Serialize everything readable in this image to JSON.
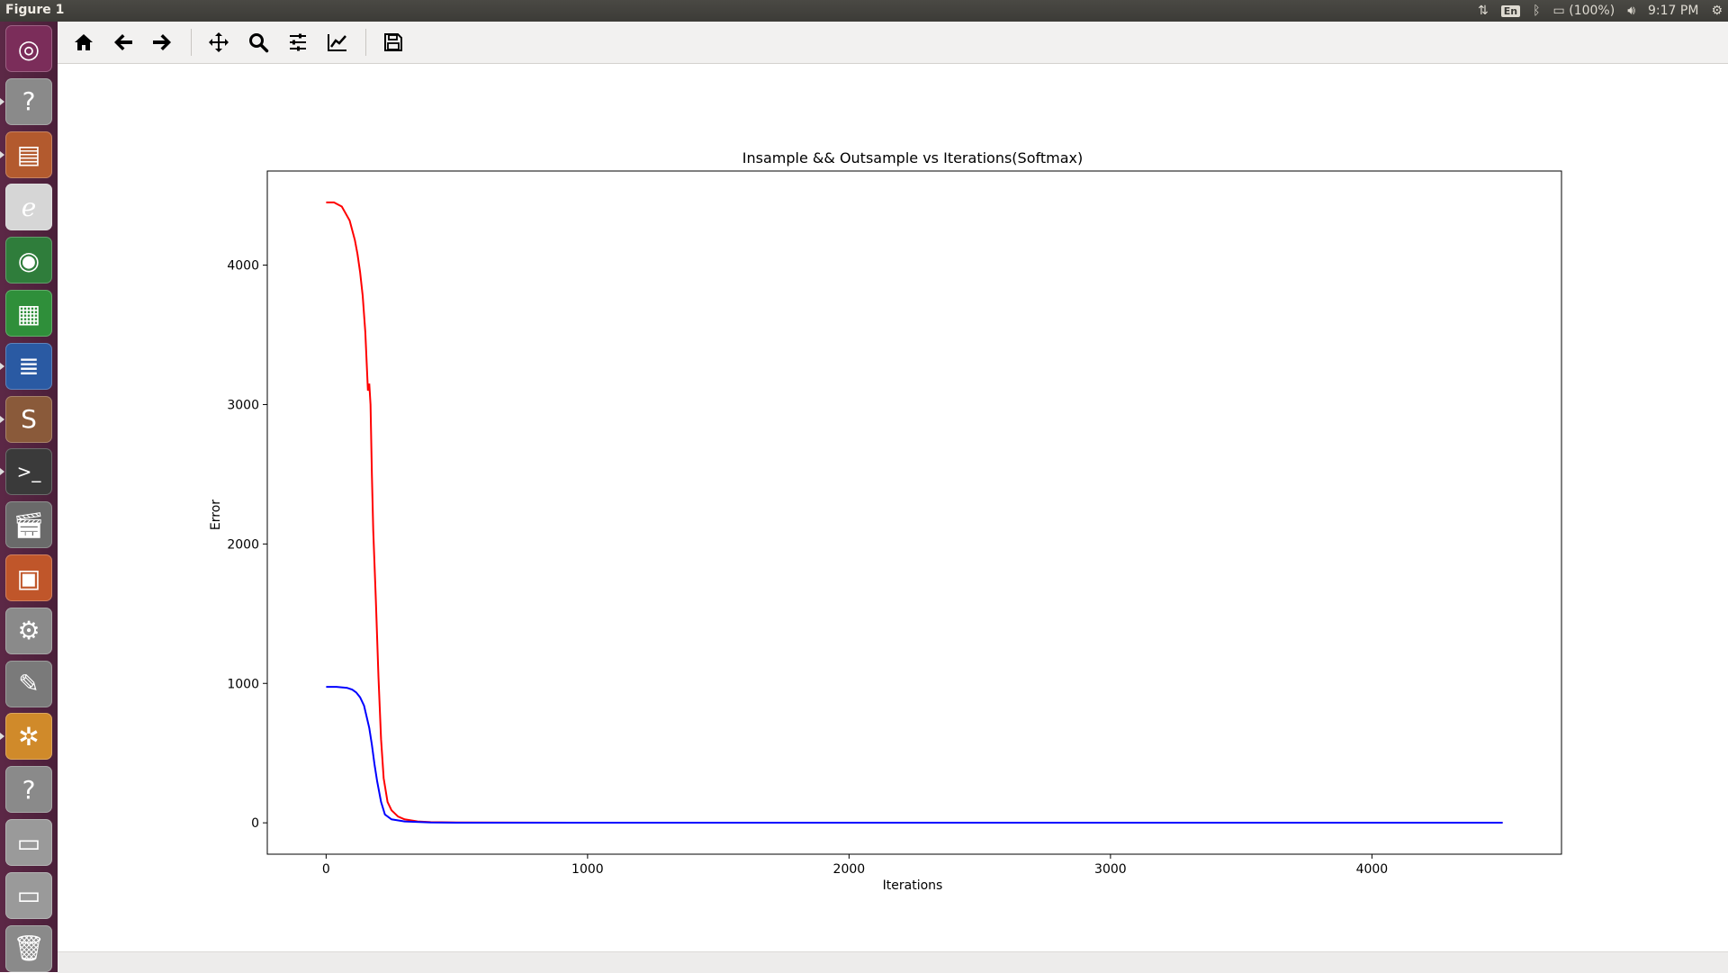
{
  "window": {
    "title": "Figure 1"
  },
  "tray": {
    "keyboard": "En",
    "battery": "(100%)",
    "clock": "9:17 PM"
  },
  "launcher": {
    "items": [
      {
        "name": "dash-home",
        "icon": "ubuntu-logo-icon",
        "color": "#7b2d5a"
      },
      {
        "name": "unknown-app-1",
        "icon": "question-icon",
        "color": "#8a8a8a"
      },
      {
        "name": "files",
        "icon": "file-cabinet-icon",
        "color": "#b35a2e"
      },
      {
        "name": "document-viewer",
        "icon": "pdf-icon",
        "color": "#d6d6d6"
      },
      {
        "name": "chrome",
        "icon": "chrome-icon",
        "color": "#2f7d3b"
      },
      {
        "name": "calc",
        "icon": "spreadsheet-icon",
        "color": "#2f8f3a"
      },
      {
        "name": "writer",
        "icon": "writer-icon",
        "color": "#2a5aa3"
      },
      {
        "name": "sublime-text",
        "icon": "sublime-icon",
        "color": "#8a5a3a"
      },
      {
        "name": "terminal",
        "icon": "terminal-icon",
        "color": "#3a3a3a"
      },
      {
        "name": "video-editor",
        "icon": "clapper-icon",
        "color": "#6a6a6a"
      },
      {
        "name": "impress",
        "icon": "presentation-icon",
        "color": "#c0562a"
      },
      {
        "name": "system-settings",
        "icon": "gear-wrench-icon",
        "color": "#8a8a8a"
      },
      {
        "name": "text-editor",
        "icon": "text-editor-icon",
        "color": "#7a7a7a"
      },
      {
        "name": "pinwheel-app",
        "icon": "pinwheel-icon",
        "color": "#d08a2a"
      },
      {
        "name": "unknown-app-2",
        "icon": "question-icon",
        "color": "#8a8a8a"
      },
      {
        "name": "drive-1",
        "icon": "hard-drive-icon",
        "color": "#9a9a9a"
      },
      {
        "name": "drive-2",
        "icon": "hard-drive-icon",
        "color": "#9a9a9a"
      },
      {
        "name": "trash",
        "icon": "trash-icon",
        "color": "#8a8a8a"
      }
    ]
  },
  "toolbar": {
    "buttons": [
      {
        "name": "home-button",
        "icon": "home-icon"
      },
      {
        "name": "back-button",
        "icon": "arrow-left-icon"
      },
      {
        "name": "forward-button",
        "icon": "arrow-right-icon"
      },
      {
        "name": "pan-button",
        "icon": "move-icon"
      },
      {
        "name": "zoom-button",
        "icon": "zoom-icon"
      },
      {
        "name": "configure-subplots-button",
        "icon": "sliders-icon"
      },
      {
        "name": "edit-axis-button",
        "icon": "line-chart-icon"
      },
      {
        "name": "save-button",
        "icon": "floppy-icon"
      }
    ]
  },
  "chart_data": {
    "type": "line",
    "title": "Insample && Outsample vs Iterations(Softmax)",
    "xlabel": "Iterations",
    "ylabel": "Error",
    "xlim": [
      -225,
      4725
    ],
    "ylim": [
      -225,
      4675
    ],
    "xticks": [
      0,
      1000,
      2000,
      3000,
      4000
    ],
    "yticks": [
      0,
      1000,
      2000,
      3000,
      4000
    ],
    "grid": false,
    "legend": "none",
    "series": [
      {
        "color": "#ff0000",
        "x": [
          0,
          30,
          60,
          90,
          110,
          120,
          130,
          140,
          150,
          160,
          165,
          170,
          175,
          180,
          190,
          200,
          210,
          220,
          235,
          250,
          275,
          300,
          350,
          400,
          500,
          1000,
          2000,
          3000,
          4000,
          4500
        ],
        "y": [
          4450,
          4450,
          4420,
          4320,
          4180,
          4080,
          3950,
          3780,
          3520,
          3100,
          3150,
          3000,
          2500,
          2100,
          1600,
          1050,
          600,
          320,
          150,
          90,
          45,
          25,
          10,
          5,
          2,
          1,
          1,
          1,
          1,
          1
        ]
      },
      {
        "color": "#0000ff",
        "x": [
          0,
          40,
          80,
          100,
          115,
          130,
          145,
          155,
          165,
          175,
          185,
          195,
          210,
          225,
          250,
          300,
          400,
          500,
          1000,
          2000,
          3000,
          4000,
          4500
        ],
        "y": [
          975,
          975,
          968,
          955,
          935,
          900,
          840,
          760,
          680,
          560,
          420,
          300,
          150,
          60,
          25,
          10,
          3,
          1,
          1,
          1,
          1,
          1,
          1
        ]
      }
    ]
  }
}
